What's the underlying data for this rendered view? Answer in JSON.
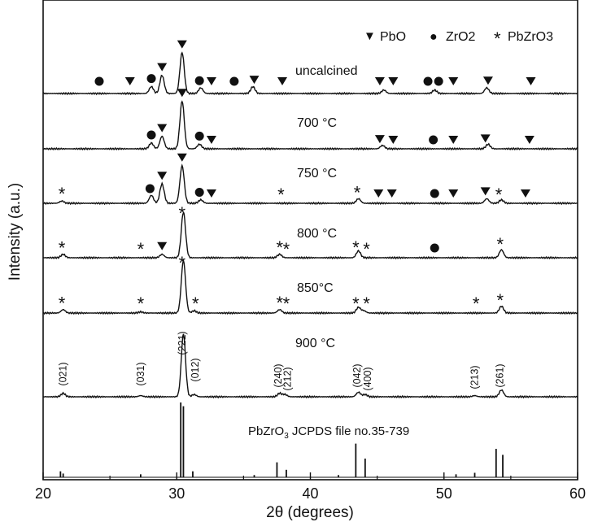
{
  "chart_data": {
    "type": "line",
    "xlabel": "2θ (degrees)",
    "ylabel": "Intensity (a.u.)",
    "xlim": [
      20,
      60
    ],
    "xticks": [
      20,
      30,
      40,
      50,
      60
    ],
    "grid": false,
    "legend_position": "top-right",
    "legend": [
      {
        "symbol": "triangle",
        "glyph": "▼",
        "label": "PbO"
      },
      {
        "symbol": "circle",
        "glyph": "●",
        "label": "ZrO2"
      },
      {
        "symbol": "asterisk",
        "glyph": "*",
        "label": "PbZrO3"
      }
    ],
    "series": [
      {
        "name": "uncalcined",
        "peaks": [
          [
            28.1,
            0.06
          ],
          [
            28.9,
            0.16
          ],
          [
            30.4,
            0.36
          ],
          [
            31.8,
            0.05
          ],
          [
            35.7,
            0.06
          ],
          [
            45.5,
            0.03
          ],
          [
            49.3,
            0.03
          ],
          [
            53.2,
            0.05
          ]
        ],
        "markers": [
          {
            "x": 24.2,
            "m": "circle"
          },
          {
            "x": 26.5,
            "m": "triangle"
          },
          {
            "x": 28.1,
            "m": "circle"
          },
          {
            "x": 28.9,
            "m": "triangle"
          },
          {
            "x": 30.4,
            "m": "triangle"
          },
          {
            "x": 31.7,
            "m": "circle"
          },
          {
            "x": 32.6,
            "m": "triangle"
          },
          {
            "x": 34.3,
            "m": "circle"
          },
          {
            "x": 35.8,
            "m": "triangle"
          },
          {
            "x": 37.9,
            "m": "triangle"
          },
          {
            "x": 45.2,
            "m": "triangle"
          },
          {
            "x": 46.2,
            "m": "triangle"
          },
          {
            "x": 48.8,
            "m": "circle"
          },
          {
            "x": 49.6,
            "m": "circle"
          },
          {
            "x": 50.7,
            "m": "triangle"
          },
          {
            "x": 53.3,
            "m": "triangle"
          },
          {
            "x": 56.5,
            "m": "triangle"
          }
        ]
      },
      {
        "name": "700 °C",
        "peaks": [
          [
            28.1,
            0.05
          ],
          [
            28.9,
            0.11
          ],
          [
            30.4,
            0.42
          ],
          [
            31.7,
            0.04
          ],
          [
            45.4,
            0.03
          ],
          [
            53.3,
            0.04
          ]
        ],
        "markers": [
          {
            "x": 28.1,
            "m": "circle"
          },
          {
            "x": 28.9,
            "m": "triangle"
          },
          {
            "x": 30.4,
            "m": "triangle"
          },
          {
            "x": 31.7,
            "m": "circle"
          },
          {
            "x": 32.6,
            "m": "triangle"
          },
          {
            "x": 45.2,
            "m": "triangle"
          },
          {
            "x": 46.2,
            "m": "triangle"
          },
          {
            "x": 49.2,
            "m": "circle"
          },
          {
            "x": 50.7,
            "m": "triangle"
          },
          {
            "x": 53.1,
            "m": "triangle"
          },
          {
            "x": 56.4,
            "m": "triangle"
          }
        ]
      },
      {
        "name": "750 °C",
        "peaks": [
          [
            21.4,
            0.02
          ],
          [
            28.1,
            0.07
          ],
          [
            28.9,
            0.17
          ],
          [
            30.4,
            0.33
          ],
          [
            31.8,
            0.03
          ],
          [
            43.6,
            0.04
          ],
          [
            53.2,
            0.04
          ],
          [
            54.3,
            0.03
          ]
        ],
        "markers": [
          {
            "x": 21.4,
            "m": "asterisk"
          },
          {
            "x": 28.0,
            "m": "circle"
          },
          {
            "x": 28.9,
            "m": "triangle"
          },
          {
            "x": 30.4,
            "m": "triangle"
          },
          {
            "x": 31.7,
            "m": "circle"
          },
          {
            "x": 32.6,
            "m": "triangle"
          },
          {
            "x": 37.8,
            "m": "asterisk"
          },
          {
            "x": 43.5,
            "m": "asterisk"
          },
          {
            "x": 45.1,
            "m": "triangle"
          },
          {
            "x": 46.1,
            "m": "triangle"
          },
          {
            "x": 49.3,
            "m": "circle"
          },
          {
            "x": 50.7,
            "m": "triangle"
          },
          {
            "x": 53.1,
            "m": "triangle"
          },
          {
            "x": 54.1,
            "m": "asterisk"
          },
          {
            "x": 56.1,
            "m": "triangle"
          }
        ]
      },
      {
        "name": "800 °C",
        "peaks": [
          [
            21.5,
            0.03
          ],
          [
            28.9,
            0.03
          ],
          [
            30.5,
            0.4
          ],
          [
            37.7,
            0.03
          ],
          [
            43.6,
            0.06
          ],
          [
            54.3,
            0.07
          ]
        ],
        "markers": [
          {
            "x": 21.4,
            "m": "asterisk"
          },
          {
            "x": 27.3,
            "m": "asterisk"
          },
          {
            "x": 28.9,
            "m": "triangle"
          },
          {
            "x": 30.4,
            "m": "asterisk"
          },
          {
            "x": 37.7,
            "m": "asterisk"
          },
          {
            "x": 38.2,
            "m": "asterisk"
          },
          {
            "x": 43.4,
            "m": "asterisk"
          },
          {
            "x": 44.2,
            "m": "asterisk"
          },
          {
            "x": 49.3,
            "m": "circle"
          },
          {
            "x": 54.2,
            "m": "asterisk"
          }
        ]
      },
      {
        "name": "850°C",
        "peaks": [
          [
            21.5,
            0.03
          ],
          [
            27.3,
            0.01
          ],
          [
            30.5,
            0.46
          ],
          [
            31.3,
            0.02
          ],
          [
            37.7,
            0.03
          ],
          [
            43.6,
            0.05
          ],
          [
            44.0,
            0.02
          ],
          [
            54.3,
            0.06
          ]
        ],
        "markers": [
          {
            "x": 21.4,
            "m": "asterisk"
          },
          {
            "x": 27.3,
            "m": "asterisk"
          },
          {
            "x": 30.4,
            "m": "asterisk"
          },
          {
            "x": 31.4,
            "m": "asterisk"
          },
          {
            "x": 37.7,
            "m": "asterisk"
          },
          {
            "x": 38.2,
            "m": "asterisk"
          },
          {
            "x": 43.4,
            "m": "asterisk"
          },
          {
            "x": 44.2,
            "m": "asterisk"
          },
          {
            "x": 52.4,
            "m": "asterisk"
          },
          {
            "x": 54.2,
            "m": "asterisk"
          }
        ]
      },
      {
        "name": "900 °C",
        "peaks": [
          [
            21.5,
            0.03
          ],
          [
            27.3,
            0.01
          ],
          [
            30.5,
            0.55
          ],
          [
            31.3,
            0.02
          ],
          [
            37.7,
            0.03
          ],
          [
            38.1,
            0.02
          ],
          [
            43.6,
            0.04
          ],
          [
            44.1,
            0.02
          ],
          [
            52.3,
            0.01
          ],
          [
            54.3,
            0.06
          ]
        ],
        "markers": []
      }
    ],
    "hkl_labels": [
      {
        "x": 21.5,
        "text": "(021)"
      },
      {
        "x": 27.3,
        "text": "(031)"
      },
      {
        "x": 30.4,
        "text": "(221)"
      },
      {
        "x": 31.4,
        "text": "(012)"
      },
      {
        "x": 37.6,
        "text": "(240)"
      },
      {
        "x": 38.3,
        "text": "(212)"
      },
      {
        "x": 43.5,
        "text": "(042)"
      },
      {
        "x": 44.3,
        "text": "(400)"
      },
      {
        "x": 52.3,
        "text": "(213)"
      },
      {
        "x": 54.2,
        "text": "(261)"
      }
    ],
    "reference": {
      "label_main": "PbZrO",
      "label_sub": "3",
      "label_rest": "  JCPDS file no.35-739",
      "sticks": [
        [
          21.3,
          0.08
        ],
        [
          21.5,
          0.05
        ],
        [
          27.3,
          0.04
        ],
        [
          30.3,
          1.0
        ],
        [
          30.5,
          0.95
        ],
        [
          31.2,
          0.08
        ],
        [
          35.8,
          0.03
        ],
        [
          37.5,
          0.2
        ],
        [
          38.2,
          0.1
        ],
        [
          42.1,
          0.03
        ],
        [
          43.4,
          0.45
        ],
        [
          44.1,
          0.25
        ],
        [
          50.9,
          0.04
        ],
        [
          52.3,
          0.06
        ],
        [
          53.9,
          0.38
        ],
        [
          54.4,
          0.3
        ]
      ]
    }
  }
}
